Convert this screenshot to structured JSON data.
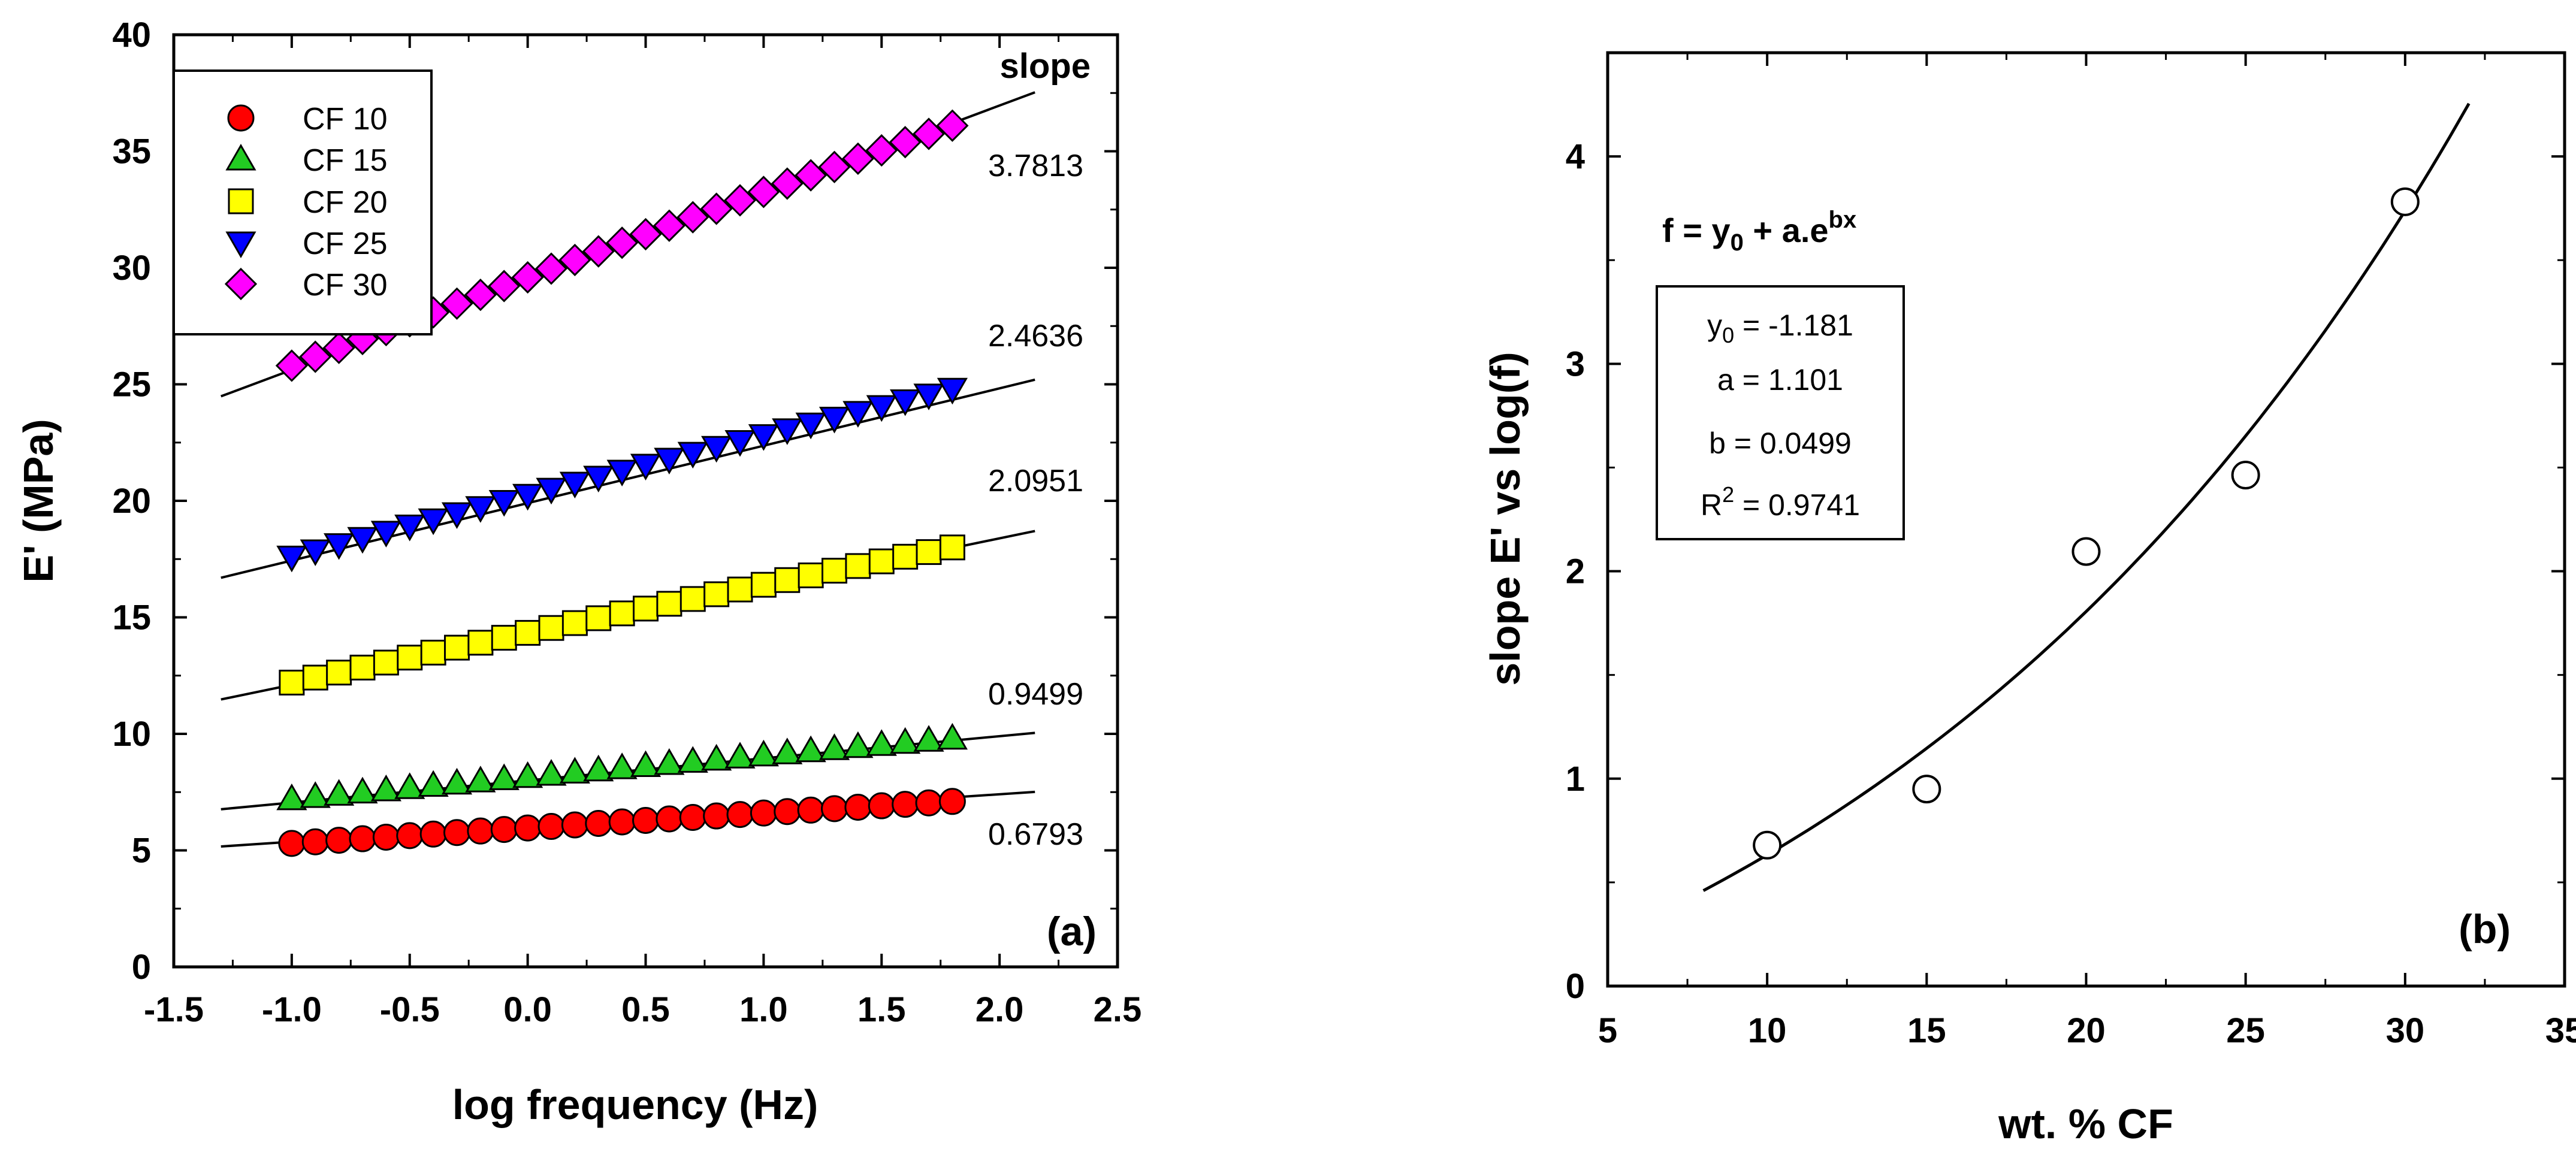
{
  "chart_data": [
    {
      "id": "a",
      "type": "scatter",
      "panel_label": "(a)",
      "xlabel": "log frequency (Hz)",
      "ylabel": "E' (MPa)",
      "xlim": [
        -1.5,
        2.5
      ],
      "ylim": [
        0,
        40
      ],
      "xtick_labels": [
        "-1.5",
        "-1.0",
        "-0.5",
        "0.0",
        "0.5",
        "1.0",
        "1.5",
        "2.0",
        "2.5"
      ],
      "ytick_labels": [
        "0",
        "5",
        "10",
        "15",
        "20",
        "25",
        "30",
        "35",
        "40"
      ],
      "grid": false,
      "legend_position": "top-left",
      "slope_header": "slope",
      "series": [
        {
          "name": "CF 10",
          "marker": "circle",
          "color": "#ff0000",
          "x_start": -1.0,
          "x_end": 1.8,
          "x_step": 0.1,
          "y_start": 5.3,
          "y_end": 7.1,
          "fit_intercept": 6.05,
          "fit_x_range": [
            -1.3,
            2.15
          ],
          "slope_label": "0.6793"
        },
        {
          "name": "CF 15",
          "marker": "triangle-up",
          "color": "#22cc22",
          "x_start": -1.0,
          "x_end": 1.8,
          "x_step": 0.1,
          "y_start": 7.2,
          "y_end": 9.8,
          "fit_intercept": 8.0,
          "fit_x_range": [
            -1.3,
            2.15
          ],
          "slope_label": "0.9499"
        },
        {
          "name": "CF 20",
          "marker": "square",
          "color": "#ffff00",
          "x_start": -1.0,
          "x_end": 1.8,
          "x_step": 0.1,
          "y_start": 12.2,
          "y_end": 18.0,
          "fit_intercept": 14.2,
          "fit_x_range": [
            -1.3,
            2.15
          ],
          "slope_label": "2.0951"
        },
        {
          "name": "CF 25",
          "marker": "triangle-down",
          "color": "#0000ff",
          "x_start": -1.0,
          "x_end": 1.8,
          "x_step": 0.1,
          "y_start": 17.6,
          "y_end": 24.8,
          "fit_intercept": 19.9,
          "fit_x_range": [
            -1.3,
            2.15
          ],
          "slope_label": "2.4636"
        },
        {
          "name": "CF 30",
          "marker": "diamond",
          "color": "#ff00ff",
          "x_start": -1.0,
          "x_end": 1.8,
          "x_step": 0.1,
          "y_start": 25.8,
          "y_end": 36.1,
          "fit_intercept": 29.4,
          "fit_x_range": [
            -1.3,
            2.15
          ],
          "slope_label": "3.7813"
        }
      ]
    },
    {
      "id": "b",
      "type": "scatter",
      "panel_label": "(b)",
      "xlabel": "wt. % CF",
      "ylabel": "slope E' vs log(f)",
      "xlim": [
        5,
        35
      ],
      "ylim": [
        0,
        4.5
      ],
      "xtick_labels": [
        "5",
        "10",
        "15",
        "20",
        "25",
        "30",
        "35"
      ],
      "ytick_labels": [
        "0",
        "1",
        "2",
        "3",
        "4"
      ],
      "grid": false,
      "points": {
        "x": [
          10,
          15,
          20,
          25,
          30
        ],
        "y": [
          0.6793,
          0.9499,
          2.0951,
          2.4636,
          3.7813
        ]
      },
      "fit": {
        "y0": -1.181,
        "a": 1.101,
        "b": 0.0499,
        "x_range": [
          8,
          32
        ]
      },
      "equation": {
        "prefix": "f = y",
        "sub": "0",
        "middle": " + a.e",
        "sup": "bx"
      },
      "params": {
        "y0_prefix": "y",
        "y0_sub": "0",
        "y0_value": " = -1.181",
        "a_text": "a = 1.101",
        "b_text": "b = 0.0499",
        "r2_prefix": "R",
        "r2_sup": "2",
        "r2_value": " = 0.9741"
      }
    }
  ]
}
